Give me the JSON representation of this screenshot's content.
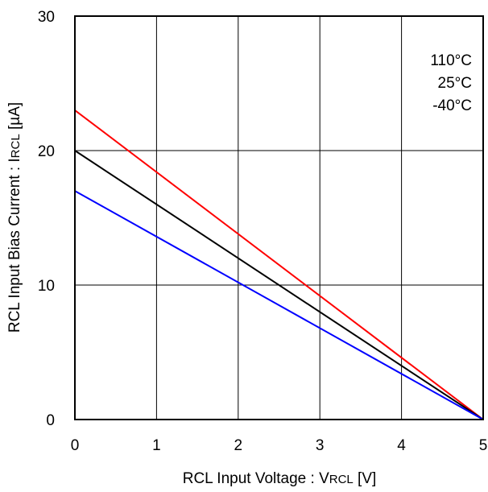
{
  "chart_data": {
    "type": "line",
    "title": "",
    "xlabel": {
      "main": "RCL Input Voltage : V",
      "sub": "RCL",
      "unit": " [V]"
    },
    "ylabel": {
      "main": "RCL Input Bias Current : I",
      "sub": "RCL",
      "unit": " [µA]"
    },
    "xlim": [
      0,
      5
    ],
    "ylim": [
      0,
      30
    ],
    "xticks": [
      0,
      1,
      2,
      3,
      4,
      5
    ],
    "yticks": [
      0,
      10,
      20,
      30
    ],
    "grid": true,
    "legend_position": "top-right",
    "legend": [
      "110°C",
      "25°C",
      "-40°C"
    ],
    "series": [
      {
        "name": "110°C",
        "color": "#ff0000",
        "x": [
          0,
          5
        ],
        "y": [
          23,
          0
        ]
      },
      {
        "name": "25°C",
        "color": "#000000",
        "x": [
          0,
          5
        ],
        "y": [
          20,
          0
        ]
      },
      {
        "name": "-40°C",
        "color": "#0000ff",
        "x": [
          0,
          5
        ],
        "y": [
          17,
          0
        ]
      }
    ]
  }
}
